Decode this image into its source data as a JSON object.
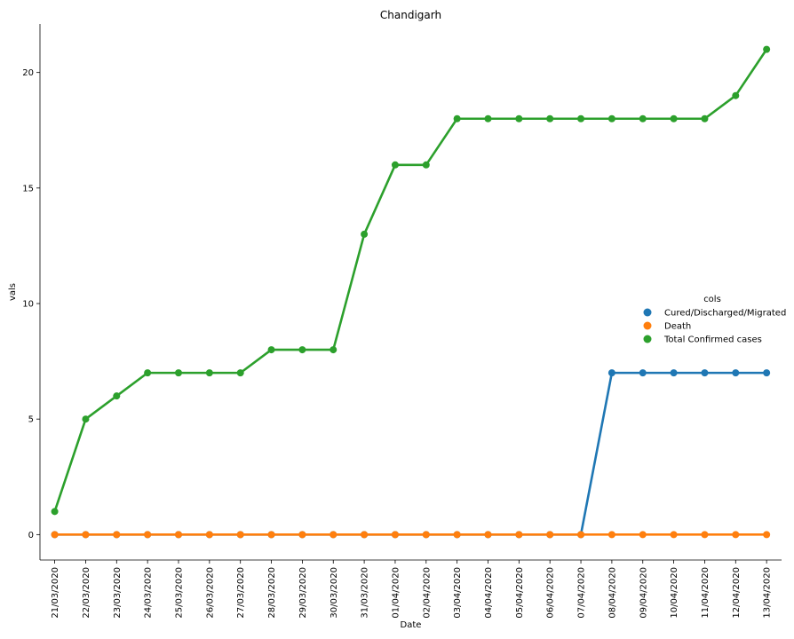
{
  "chart_data": {
    "type": "line",
    "title": "Chandigarh",
    "xlabel": "Date",
    "ylabel": "vals",
    "categories": [
      "21/03/2020",
      "22/03/2020",
      "23/03/2020",
      "24/03/2020",
      "25/03/2020",
      "26/03/2020",
      "27/03/2020",
      "28/03/2020",
      "29/03/2020",
      "30/03/2020",
      "31/03/2020",
      "01/04/2020",
      "02/04/2020",
      "03/04/2020",
      "04/04/2020",
      "05/04/2020",
      "06/04/2020",
      "07/04/2020",
      "08/04/2020",
      "09/04/2020",
      "10/04/2020",
      "11/04/2020",
      "12/04/2020",
      "13/04/2020"
    ],
    "series": [
      {
        "name": "Cured/Discharged/Migrated",
        "color": "#1f77b4",
        "values": [
          0,
          0,
          0,
          0,
          0,
          0,
          0,
          0,
          0,
          0,
          0,
          0,
          0,
          0,
          0,
          0,
          0,
          0,
          7,
          7,
          7,
          7,
          7,
          7
        ]
      },
      {
        "name": "Death",
        "color": "#ff7f0e",
        "values": [
          0,
          0,
          0,
          0,
          0,
          0,
          0,
          0,
          0,
          0,
          0,
          0,
          0,
          0,
          0,
          0,
          0,
          0,
          0,
          0,
          0,
          0,
          0,
          0
        ]
      },
      {
        "name": "Total Confirmed cases",
        "color": "#2ca02c",
        "values": [
          1,
          5,
          6,
          7,
          7,
          7,
          7,
          8,
          8,
          8,
          13,
          16,
          16,
          18,
          18,
          18,
          18,
          18,
          18,
          18,
          18,
          18,
          19,
          21
        ]
      }
    ],
    "ylim": [
      -1.1,
      22.1
    ],
    "yticks": [
      0,
      5,
      10,
      15,
      20
    ],
    "grid": false,
    "legend": {
      "title": "cols",
      "position": "right"
    }
  }
}
